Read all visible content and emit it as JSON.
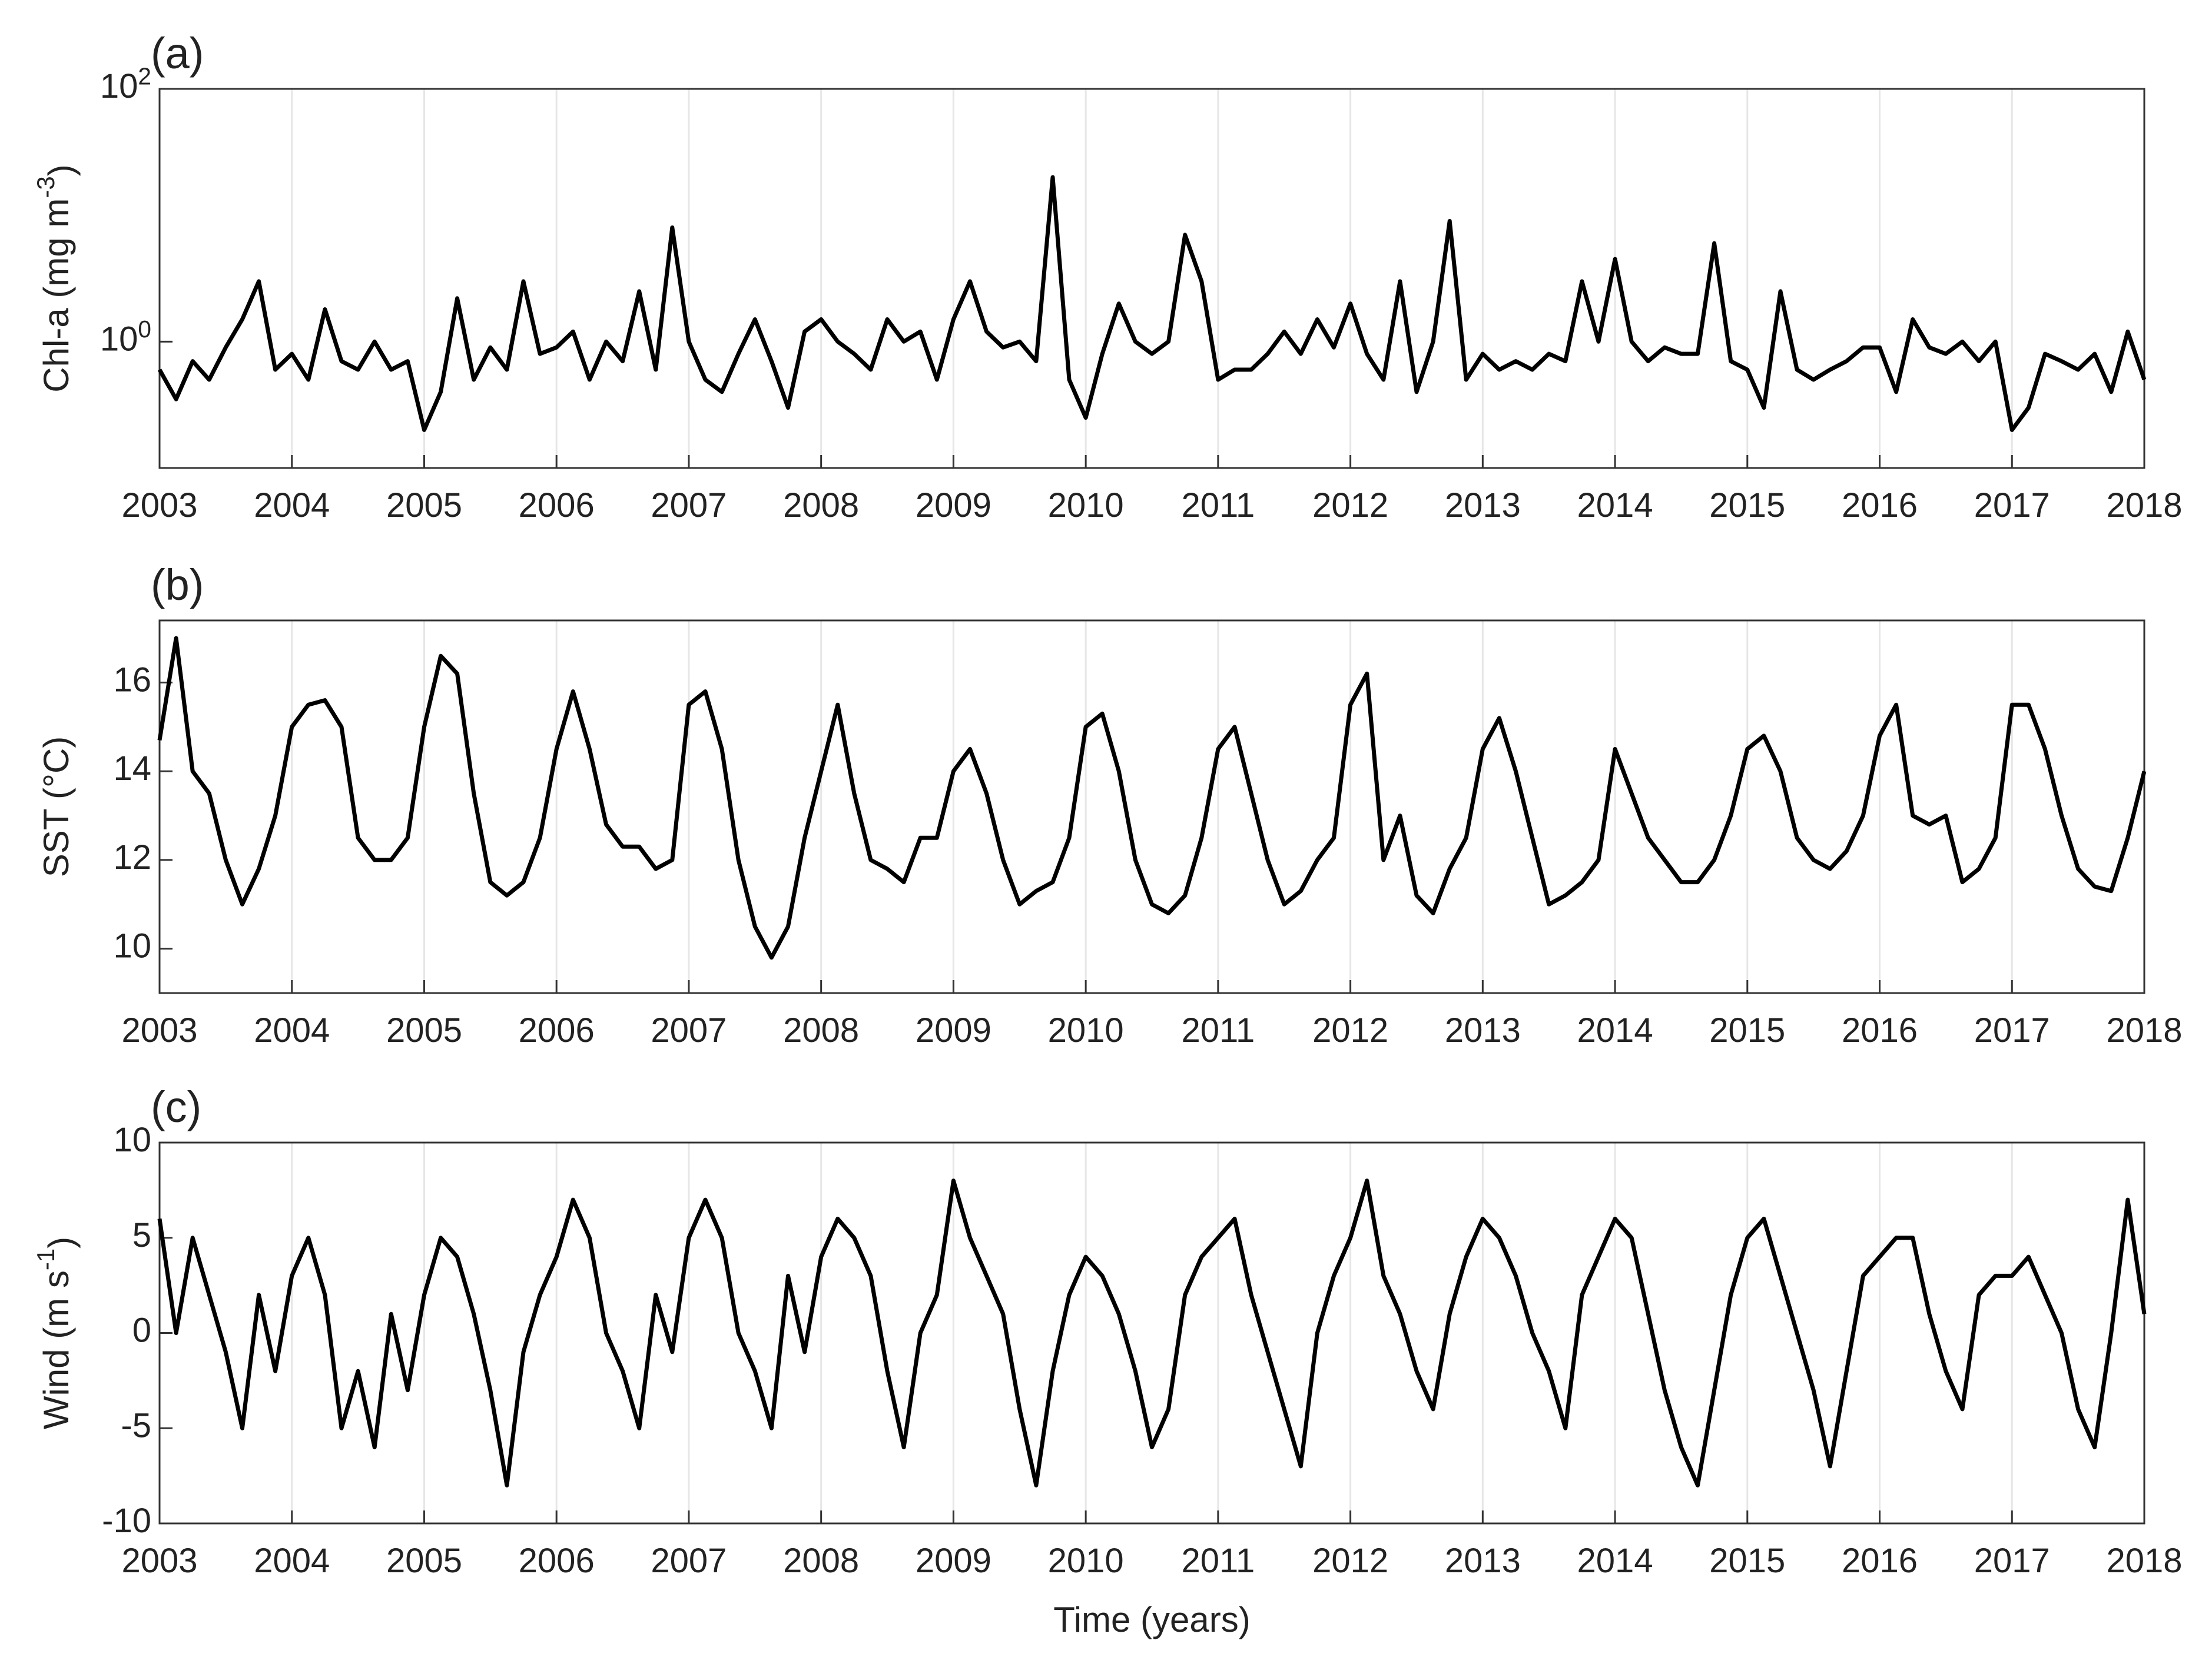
{
  "chart_data": [
    {
      "type": "line",
      "title": "(a)",
      "ylabel": "Chl-a (mg m^-3)",
      "log_y": true,
      "grid": "x",
      "color": "#000000",
      "xlim": [
        2003,
        2018
      ],
      "xticks": [
        2003,
        2004,
        2005,
        2006,
        2007,
        2008,
        2009,
        2010,
        2011,
        2012,
        2013,
        2014,
        2015,
        2016,
        2017,
        2018
      ],
      "ylim": [
        0.1,
        100
      ],
      "yticks": [
        {
          "value": 1,
          "label": "10^0"
        },
        {
          "value": 100,
          "label": "10^2"
        }
      ],
      "x": [
        2003,
        2003.125,
        2003.25,
        2003.375,
        2003.5,
        2003.625,
        2003.75,
        2003.875,
        2004,
        2004.125,
        2004.25,
        2004.375,
        2004.5,
        2004.625,
        2004.75,
        2004.875,
        2005,
        2005.125,
        2005.25,
        2005.375,
        2005.5,
        2005.625,
        2005.75,
        2005.875,
        2006,
        2006.125,
        2006.25,
        2006.375,
        2006.5,
        2006.625,
        2006.75,
        2006.875,
        2007,
        2007.125,
        2007.25,
        2007.375,
        2007.5,
        2007.625,
        2007.75,
        2007.875,
        2008,
        2008.125,
        2008.25,
        2008.375,
        2008.5,
        2008.625,
        2008.75,
        2008.875,
        2009,
        2009.125,
        2009.25,
        2009.375,
        2009.5,
        2009.625,
        2009.75,
        2009.875,
        2010,
        2010.125,
        2010.25,
        2010.375,
        2010.5,
        2010.625,
        2010.75,
        2010.875,
        2011,
        2011.125,
        2011.25,
        2011.375,
        2011.5,
        2011.625,
        2011.75,
        2011.875,
        2012,
        2012.125,
        2012.25,
        2012.375,
        2012.5,
        2012.625,
        2012.75,
        2012.875,
        2013,
        2013.125,
        2013.25,
        2013.375,
        2013.5,
        2013.625,
        2013.75,
        2013.875,
        2014,
        2014.125,
        2014.25,
        2014.375,
        2014.5,
        2014.625,
        2014.75,
        2014.875,
        2015,
        2015.125,
        2015.25,
        2015.375,
        2015.5,
        2015.625,
        2015.75,
        2015.875,
        2016,
        2016.125,
        2016.25,
        2016.375,
        2016.5,
        2016.625,
        2016.75,
        2016.875,
        2017,
        2017.125,
        2017.25,
        2017.375,
        2017.5,
        2017.625,
        2017.75,
        2017.875,
        2018
      ],
      "values": [
        0.6,
        0.35,
        0.7,
        0.5,
        0.9,
        1.5,
        3,
        0.6,
        0.8,
        0.5,
        1.8,
        0.7,
        0.6,
        1.0,
        0.6,
        0.7,
        0.2,
        0.4,
        2.2,
        0.5,
        0.9,
        0.6,
        3,
        0.8,
        0.9,
        1.2,
        0.5,
        1.0,
        0.7,
        2.5,
        0.6,
        8,
        1.0,
        0.5,
        0.4,
        0.8,
        1.5,
        0.7,
        0.3,
        1.2,
        1.5,
        1.0,
        0.8,
        0.6,
        1.5,
        1.0,
        1.2,
        0.5,
        1.5,
        3,
        1.2,
        0.9,
        1.0,
        0.7,
        20,
        0.5,
        0.25,
        0.8,
        2.0,
        1.0,
        0.8,
        1.0,
        7,
        3,
        0.5,
        0.6,
        0.6,
        0.8,
        1.2,
        0.8,
        1.5,
        0.9,
        2.0,
        0.8,
        0.5,
        3,
        0.4,
        1.0,
        9,
        0.5,
        0.8,
        0.6,
        0.7,
        0.6,
        0.8,
        0.7,
        3,
        1.0,
        4.5,
        1.0,
        0.7,
        0.9,
        0.8,
        0.8,
        6,
        0.7,
        0.6,
        0.3,
        2.5,
        0.6,
        0.5,
        0.6,
        0.7,
        0.9,
        0.9,
        0.4,
        1.5,
        0.9,
        0.8,
        1.0,
        0.7,
        1.0,
        0.2,
        0.3,
        0.8,
        0.7,
        0.6,
        0.8,
        0.4,
        1.2,
        0.5
      ]
    },
    {
      "type": "line",
      "title": "(b)",
      "ylabel": "SST (°C)",
      "log_y": false,
      "grid": "x",
      "color": "#000000",
      "xlim": [
        2003,
        2018
      ],
      "xticks": [
        2003,
        2004,
        2005,
        2006,
        2007,
        2008,
        2009,
        2010,
        2011,
        2012,
        2013,
        2014,
        2015,
        2016,
        2017,
        2018
      ],
      "ylim": [
        9,
        17.4
      ],
      "yticks": [
        10,
        12,
        14,
        16
      ],
      "x": [
        2003,
        2003.125,
        2003.25,
        2003.375,
        2003.5,
        2003.625,
        2003.75,
        2003.875,
        2004,
        2004.125,
        2004.25,
        2004.375,
        2004.5,
        2004.625,
        2004.75,
        2004.875,
        2005,
        2005.125,
        2005.25,
        2005.375,
        2005.5,
        2005.625,
        2005.75,
        2005.875,
        2006,
        2006.125,
        2006.25,
        2006.375,
        2006.5,
        2006.625,
        2006.75,
        2006.875,
        2007,
        2007.125,
        2007.25,
        2007.375,
        2007.5,
        2007.625,
        2007.75,
        2007.875,
        2008,
        2008.125,
        2008.25,
        2008.375,
        2008.5,
        2008.625,
        2008.75,
        2008.875,
        2009,
        2009.125,
        2009.25,
        2009.375,
        2009.5,
        2009.625,
        2009.75,
        2009.875,
        2010,
        2010.125,
        2010.25,
        2010.375,
        2010.5,
        2010.625,
        2010.75,
        2010.875,
        2011,
        2011.125,
        2011.25,
        2011.375,
        2011.5,
        2011.625,
        2011.75,
        2011.875,
        2012,
        2012.125,
        2012.25,
        2012.375,
        2012.5,
        2012.625,
        2012.75,
        2012.875,
        2013,
        2013.125,
        2013.25,
        2013.375,
        2013.5,
        2013.625,
        2013.75,
        2013.875,
        2014,
        2014.125,
        2014.25,
        2014.375,
        2014.5,
        2014.625,
        2014.75,
        2014.875,
        2015,
        2015.125,
        2015.25,
        2015.375,
        2015.5,
        2015.625,
        2015.75,
        2015.875,
        2016,
        2016.125,
        2016.25,
        2016.375,
        2016.5,
        2016.625,
        2016.75,
        2016.875,
        2017,
        2017.125,
        2017.25,
        2017.375,
        2017.5,
        2017.625,
        2017.75,
        2017.875,
        2018
      ],
      "values": [
        14.7,
        17.0,
        14.0,
        13.5,
        12.0,
        11.0,
        11.8,
        13.0,
        15.0,
        15.5,
        15.6,
        15.0,
        12.5,
        12.0,
        12.0,
        12.5,
        15.0,
        16.6,
        16.2,
        13.5,
        11.5,
        11.2,
        11.5,
        12.5,
        14.5,
        15.8,
        14.5,
        12.8,
        12.3,
        12.3,
        11.8,
        12.0,
        15.5,
        15.8,
        14.5,
        12.0,
        10.5,
        9.8,
        10.5,
        12.5,
        14.0,
        15.5,
        13.5,
        12.0,
        11.8,
        11.5,
        12.5,
        12.5,
        14.0,
        14.5,
        13.5,
        12.0,
        11.0,
        11.3,
        11.5,
        12.5,
        15.0,
        15.3,
        14.0,
        12.0,
        11.0,
        10.8,
        11.2,
        12.5,
        14.5,
        15.0,
        13.5,
        12.0,
        11.0,
        11.3,
        12.0,
        12.5,
        15.5,
        16.2,
        12.0,
        13.0,
        11.2,
        10.8,
        11.8,
        12.5,
        14.5,
        15.2,
        14.0,
        12.5,
        11.0,
        11.2,
        11.5,
        12.0,
        14.5,
        13.5,
        12.5,
        12.0,
        11.5,
        11.5,
        12.0,
        13.0,
        14.5,
        14.8,
        14.0,
        12.5,
        12.0,
        11.8,
        12.2,
        13.0,
        14.8,
        15.5,
        13.0,
        12.8,
        13.0,
        11.5,
        11.8,
        12.5,
        15.5,
        15.5,
        14.5,
        13.0,
        11.8,
        11.4,
        11.3,
        12.5,
        14.0
      ]
    },
    {
      "type": "line",
      "title": "(c)",
      "ylabel": "Wind (m s^-1)",
      "xlabel": "Time (years)",
      "log_y": false,
      "grid": "x",
      "color": "#000000",
      "xlim": [
        2003,
        2018
      ],
      "xticks": [
        2003,
        2004,
        2005,
        2006,
        2007,
        2008,
        2009,
        2010,
        2011,
        2012,
        2013,
        2014,
        2015,
        2016,
        2017,
        2018
      ],
      "ylim": [
        -10,
        10
      ],
      "yticks": [
        -10,
        -5,
        0,
        5,
        10
      ],
      "x": [
        2003,
        2003.125,
        2003.25,
        2003.375,
        2003.5,
        2003.625,
        2003.75,
        2003.875,
        2004,
        2004.125,
        2004.25,
        2004.375,
        2004.5,
        2004.625,
        2004.75,
        2004.875,
        2005,
        2005.125,
        2005.25,
        2005.375,
        2005.5,
        2005.625,
        2005.75,
        2005.875,
        2006,
        2006.125,
        2006.25,
        2006.375,
        2006.5,
        2006.625,
        2006.75,
        2006.875,
        2007,
        2007.125,
        2007.25,
        2007.375,
        2007.5,
        2007.625,
        2007.75,
        2007.875,
        2008,
        2008.125,
        2008.25,
        2008.375,
        2008.5,
        2008.625,
        2008.75,
        2008.875,
        2009,
        2009.125,
        2009.25,
        2009.375,
        2009.5,
        2009.625,
        2009.75,
        2009.875,
        2010,
        2010.125,
        2010.25,
        2010.375,
        2010.5,
        2010.625,
        2010.75,
        2010.875,
        2011,
        2011.125,
        2011.25,
        2011.375,
        2011.5,
        2011.625,
        2011.75,
        2011.875,
        2012,
        2012.125,
        2012.25,
        2012.375,
        2012.5,
        2012.625,
        2012.75,
        2012.875,
        2013,
        2013.125,
        2013.25,
        2013.375,
        2013.5,
        2013.625,
        2013.75,
        2013.875,
        2014,
        2014.125,
        2014.25,
        2014.375,
        2014.5,
        2014.625,
        2014.75,
        2014.875,
        2015,
        2015.125,
        2015.25,
        2015.375,
        2015.5,
        2015.625,
        2015.75,
        2015.875,
        2016,
        2016.125,
        2016.25,
        2016.375,
        2016.5,
        2016.625,
        2016.75,
        2016.875,
        2017,
        2017.125,
        2017.25,
        2017.375,
        2017.5,
        2017.625,
        2017.75,
        2017.875,
        2018
      ],
      "values": [
        6,
        0,
        5,
        2,
        -1,
        -5,
        2,
        -2,
        3,
        5,
        2,
        -5,
        -2,
        -6,
        1,
        -3,
        2,
        5,
        4,
        1,
        -3,
        -8,
        -1,
        2,
        4,
        7,
        5,
        0,
        -2,
        -5,
        2,
        -1,
        5,
        7,
        5,
        0,
        -2,
        -5,
        3,
        -1,
        4,
        6,
        5,
        3,
        -2,
        -6,
        0,
        2,
        8,
        5,
        3,
        1,
        -4,
        -8,
        -2,
        2,
        4,
        3,
        1,
        -2,
        -6,
        -4,
        2,
        4,
        5,
        6,
        2,
        -1,
        -4,
        -7,
        0,
        3,
        5,
        8,
        3,
        1,
        -2,
        -4,
        1,
        4,
        6,
        5,
        3,
        0,
        -2,
        -5,
        2,
        4,
        6,
        5,
        1,
        -3,
        -6,
        -8,
        -3,
        2,
        5,
        6,
        3,
        0,
        -3,
        -7,
        -2,
        3,
        4,
        5,
        5,
        1,
        -2,
        -4,
        2,
        3,
        3,
        4,
        2,
        0,
        -4,
        -6,
        0,
        7,
        1
      ]
    }
  ]
}
